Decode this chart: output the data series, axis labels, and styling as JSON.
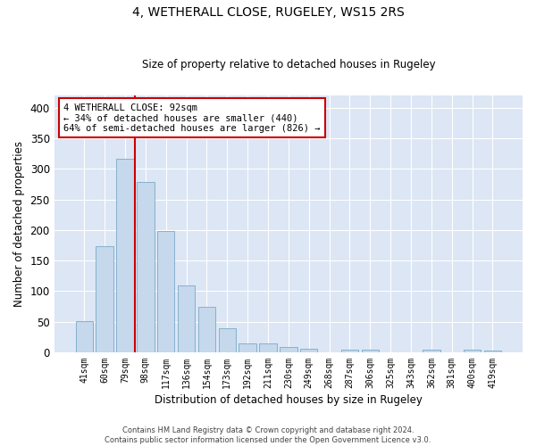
{
  "title": "4, WETHERALL CLOSE, RUGELEY, WS15 2RS",
  "subtitle": "Size of property relative to detached houses in Rugeley",
  "xlabel": "Distribution of detached houses by size in Rugeley",
  "ylabel": "Number of detached properties",
  "bar_color": "#c5d8ec",
  "bar_edge_color": "#7aaac8",
  "background_color": "#dce6f5",
  "grid_color": "#ffffff",
  "categories": [
    "41sqm",
    "60sqm",
    "79sqm",
    "98sqm",
    "117sqm",
    "136sqm",
    "154sqm",
    "173sqm",
    "192sqm",
    "211sqm",
    "230sqm",
    "249sqm",
    "268sqm",
    "287sqm",
    "306sqm",
    "325sqm",
    "343sqm",
    "362sqm",
    "381sqm",
    "400sqm",
    "419sqm"
  ],
  "values": [
    51,
    173,
    317,
    279,
    199,
    109,
    74,
    40,
    15,
    15,
    9,
    6,
    0,
    5,
    5,
    0,
    0,
    5,
    0,
    5,
    3
  ],
  "vline_x": 2.5,
  "annotation_text": "4 WETHERALL CLOSE: 92sqm\n← 34% of detached houses are smaller (440)\n64% of semi-detached houses are larger (826) →",
  "annotation_box_color": "#ffffff",
  "annotation_box_edge": "#cc0000",
  "vline_color": "#cc0000",
  "ylim": [
    0,
    420
  ],
  "yticks": [
    0,
    50,
    100,
    150,
    200,
    250,
    300,
    350,
    400
  ],
  "footnote": "Contains HM Land Registry data © Crown copyright and database right 2024.\nContains public sector information licensed under the Open Government Licence v3.0."
}
